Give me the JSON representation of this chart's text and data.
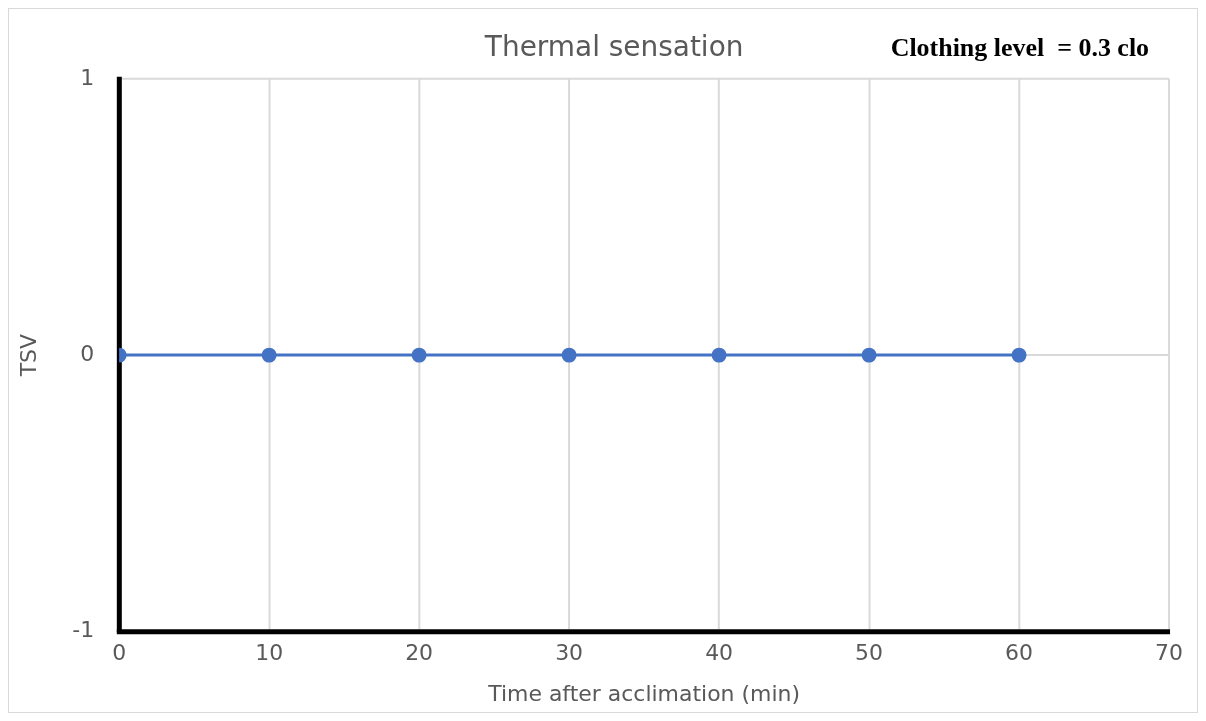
{
  "chart_data": {
    "type": "line",
    "title": "Thermal sensation",
    "xlabel": "Time after acclimation (min)",
    "ylabel": "TSV",
    "annotations": [
      "Clothing level  = 0.3 clo"
    ],
    "x": [
      0,
      10,
      20,
      30,
      40,
      50,
      60
    ],
    "series": [
      {
        "color": "#4472c4",
        "values": [
          0,
          0,
          0,
          0,
          0,
          0,
          0
        ]
      }
    ],
    "xlim": [
      0,
      70
    ],
    "xticks": [
      0,
      10,
      20,
      30,
      40,
      50,
      60,
      70
    ],
    "ylim": [
      -1,
      1
    ],
    "yticks": [
      -1,
      0,
      1
    ],
    "grid": true,
    "legend": false,
    "marker": "circle",
    "line_style": "solid"
  }
}
